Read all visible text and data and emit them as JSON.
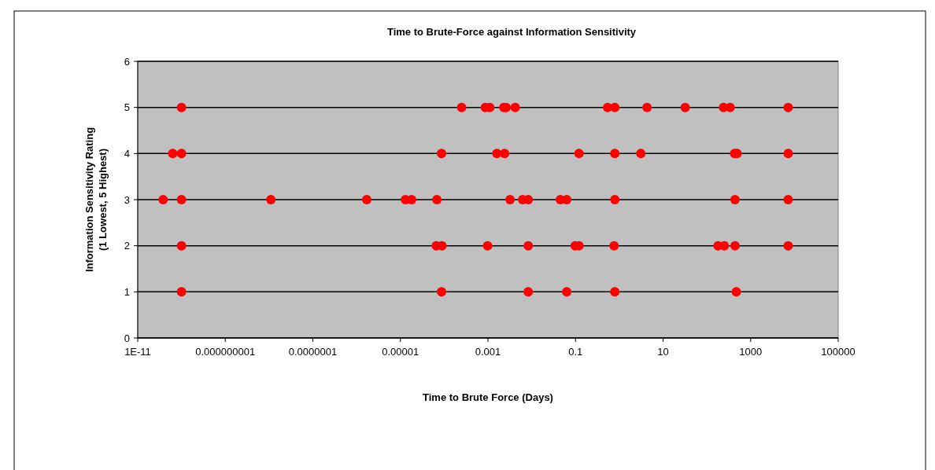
{
  "chart_data": {
    "type": "scatter",
    "title": "Time to Brute-Force against Information Sensitivity",
    "xlabel": "Time to Brute Force (Days)",
    "ylabel": "Information Sensitivity Rating\n(1 Lowest, 5 Highest)",
    "log": "x",
    "grid": "y",
    "marker": "circle",
    "xlim": [
      1e-11,
      100000
    ],
    "xticks": [
      {
        "value": 1e-11,
        "label": "1E-11"
      },
      {
        "value": 1e-09,
        "label": "0.000000001"
      },
      {
        "value": 1e-07,
        "label": "0.0000001"
      },
      {
        "value": 1e-05,
        "label": "0.00001"
      },
      {
        "value": 0.001,
        "label": "0.001"
      },
      {
        "value": 0.1,
        "label": "0.1"
      },
      10,
      1000,
      100000
    ],
    "ylim": [
      0,
      6
    ],
    "yticks": [
      0,
      1,
      2,
      3,
      4,
      5,
      6
    ],
    "series": [
      {
        "color": "#ff0000",
        "x": [
          1e-10,
          0.00025,
          0.00087,
          0.0011,
          0.0023,
          0.0026,
          0.0042,
          0.54,
          0.79,
          4.3,
          32,
          240,
          340,
          7200
        ],
        "values": [
          5,
          5,
          5,
          5,
          5,
          5,
          5,
          5,
          5,
          5,
          5,
          5,
          5,
          5
        ]
      },
      {
        "color": "#ff0000",
        "x": [
          6.3e-11,
          1e-10,
          8.7e-05,
          0.0016,
          0.0024,
          0.12,
          0.79,
          3.1,
          430,
          490,
          7200
        ],
        "values": [
          4,
          4,
          4,
          4,
          4,
          4,
          4,
          4,
          4,
          4,
          4
        ]
      },
      {
        "color": "#ff0000",
        "x": [
          3.8e-11,
          1e-10,
          1.1e-08,
          1.7e-06,
          1.3e-05,
          1.8e-05,
          6.8e-05,
          0.0032,
          0.0062,
          0.0083,
          0.045,
          0.063,
          0.79,
          440,
          7200
        ],
        "values": [
          3,
          3,
          3,
          3,
          3,
          3,
          3,
          3,
          3,
          3,
          3,
          3,
          3,
          3,
          3
        ]
      },
      {
        "color": "#ff0000",
        "x": [
          1e-10,
          6.6e-05,
          8.9e-05,
          0.00098,
          0.0083,
          0.098,
          0.12,
          0.76,
          180,
          250,
          440,
          7200
        ],
        "values": [
          2,
          2,
          2,
          2,
          2,
          2,
          2,
          2,
          2,
          2,
          2,
          2
        ]
      },
      {
        "color": "#ff0000",
        "x": [
          1e-10,
          8.7e-05,
          0.0083,
          0.063,
          0.79,
          470
        ],
        "values": [
          1,
          1,
          1,
          1,
          1,
          1
        ]
      }
    ]
  }
}
